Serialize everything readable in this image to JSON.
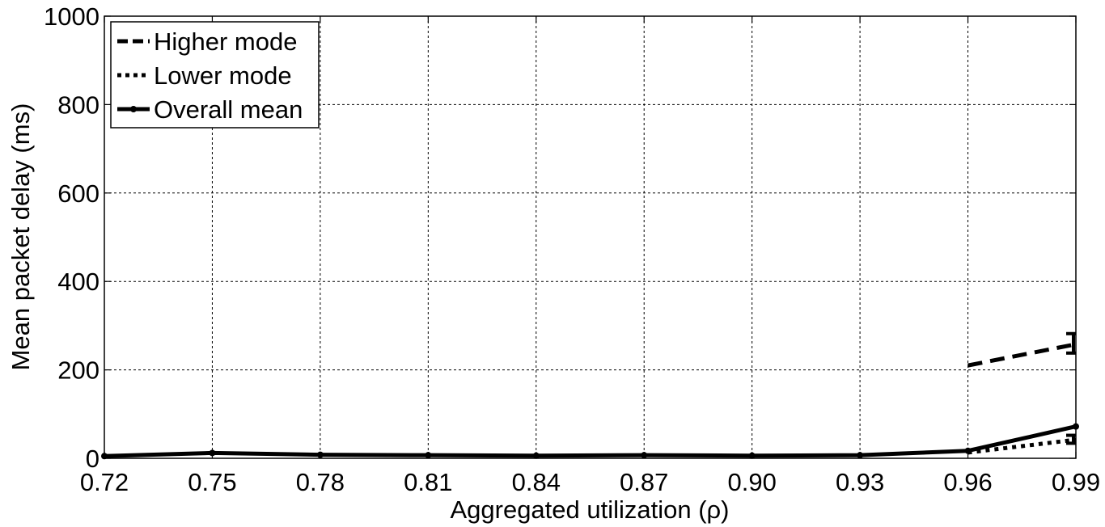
{
  "chart_data": {
    "type": "line",
    "title": "",
    "xlabel": "Aggregated utilization (ρ)",
    "ylabel": "Mean packet delay (ms)",
    "x_ticks": [
      "0.72",
      "0.75",
      "0.78",
      "0.81",
      "0.84",
      "0.87",
      "0.90",
      "0.93",
      "0.96",
      "0.99"
    ],
    "y_ticks": [
      "0",
      "200",
      "400",
      "600",
      "800",
      "1000"
    ],
    "xlim": [
      0.72,
      0.99
    ],
    "ylim": [
      0,
      1000
    ],
    "grid": true,
    "legend_position": "top-left",
    "series": [
      {
        "name": "Higher mode",
        "style": "dashed",
        "color": "#000000",
        "x": [
          0.96,
          0.99
        ],
        "y": [
          210,
          258
        ],
        "error_bars": [
          {
            "x": 0.99,
            "low": 238,
            "high": 282
          }
        ]
      },
      {
        "name": "Lower mode",
        "style": "dotted",
        "color": "#000000",
        "x": [
          0.96,
          0.99
        ],
        "y": [
          13,
          42
        ],
        "error_bars": [
          {
            "x": 0.99,
            "low": 34,
            "high": 52
          }
        ]
      },
      {
        "name": "Overall mean",
        "style": "solid",
        "color": "#000000",
        "x": [
          0.72,
          0.75,
          0.78,
          0.81,
          0.84,
          0.87,
          0.9,
          0.93,
          0.96,
          0.99
        ],
        "y": [
          5,
          12,
          8,
          7,
          6,
          7,
          6,
          7,
          17,
          72
        ]
      }
    ]
  }
}
